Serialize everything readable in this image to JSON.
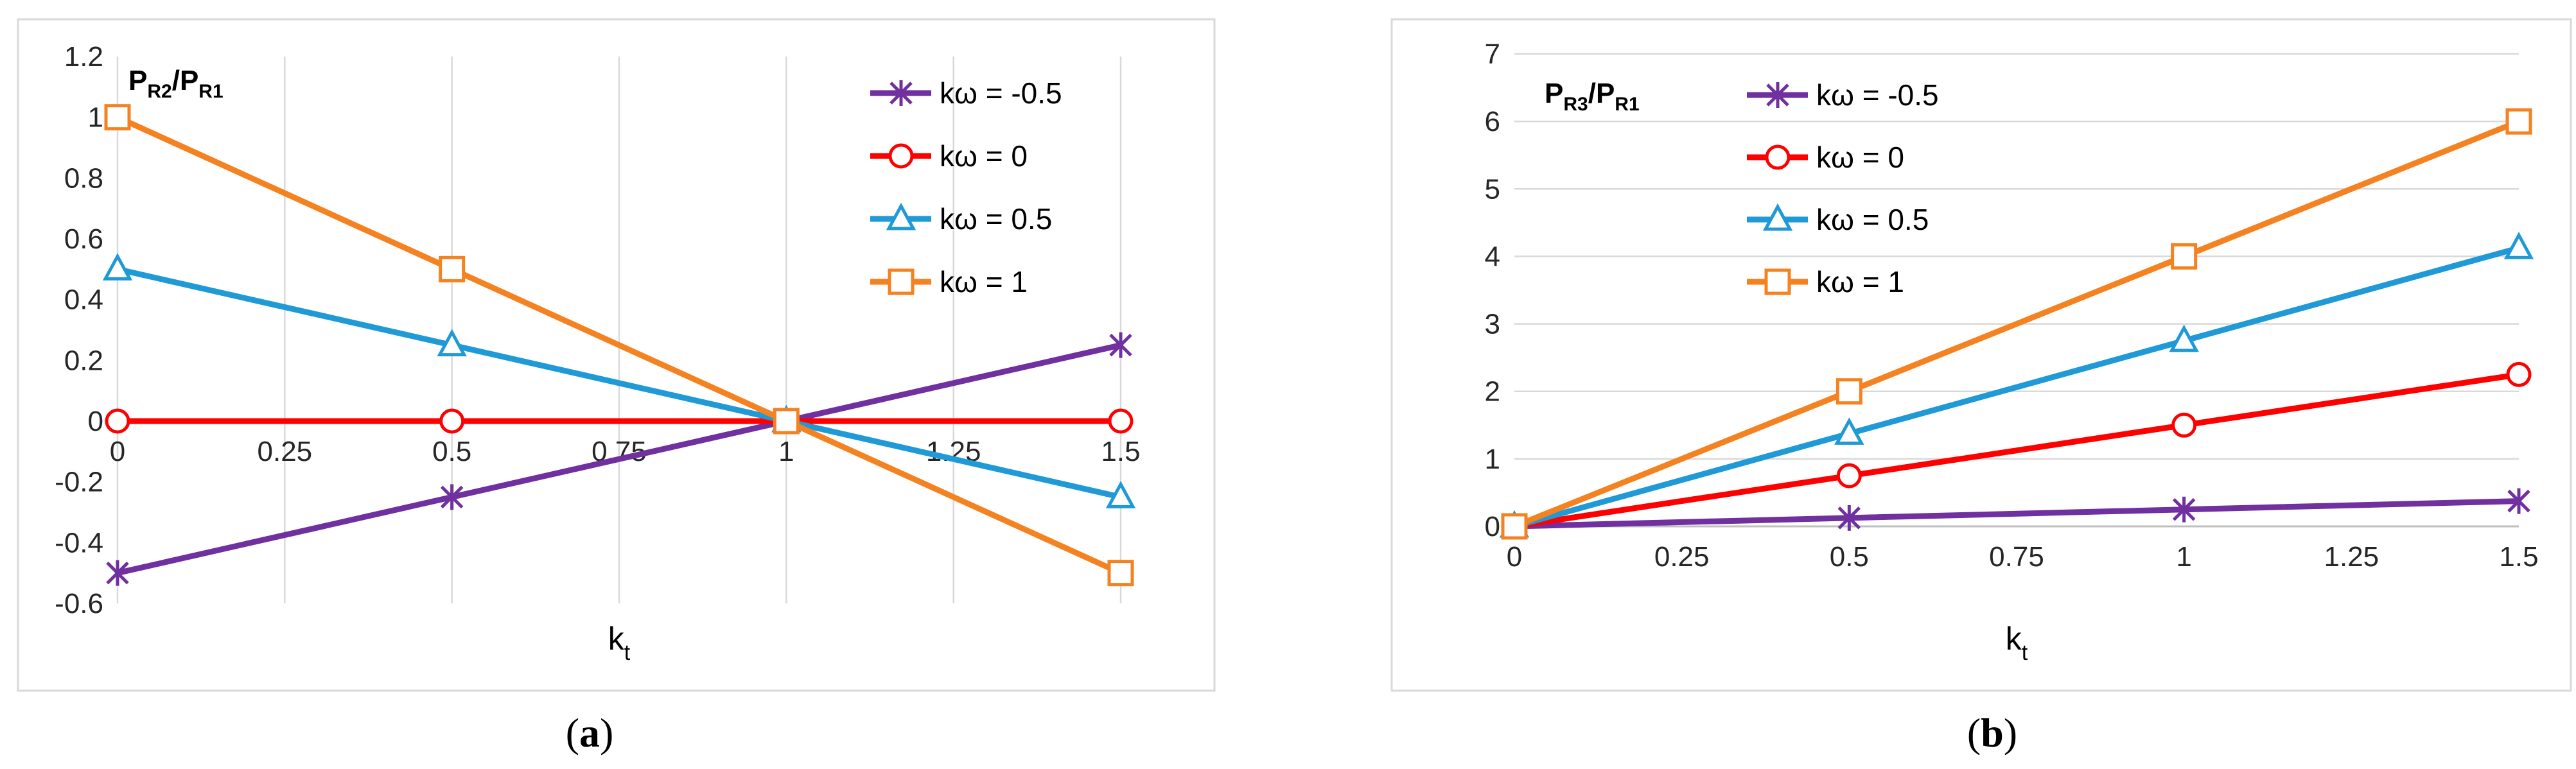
{
  "chart_data": [
    {
      "type": "line",
      "panel_label": "a",
      "ylabel_main": "P",
      "ylabel_parts": [
        [
          "P",
          ""
        ],
        [
          "R2",
          "sub"
        ],
        [
          "/P",
          ""
        ],
        [
          "R1",
          "sub"
        ]
      ],
      "ylabel_text": "PR2/PR1",
      "xlabel_main": "k",
      "xlabel_sub": "t",
      "x_ticks": [
        "0",
        "0.25",
        "0.5",
        "0.75",
        "1",
        "1.25",
        "1.5"
      ],
      "y_ticks": [
        "-0.6",
        "-0.4",
        "-0.2",
        "0",
        "0.2",
        "0.4",
        "0.6",
        "0.8",
        "1",
        "1.2"
      ],
      "xlim": [
        0,
        1.5
      ],
      "ylim": [
        -0.6,
        1.2
      ],
      "grid": "vertical",
      "x_axis_at_zero": true,
      "legend_position": "top-right",
      "x": [
        0,
        0.5,
        1,
        1.5
      ],
      "series": [
        {
          "name": "kω = -0.5",
          "color": "#7030A0",
          "marker": "star",
          "values": [
            -0.5,
            -0.25,
            0,
            0.25
          ]
        },
        {
          "name": "kω = 0",
          "color": "#FF0000",
          "marker": "circle",
          "values": [
            0,
            0,
            0,
            0
          ]
        },
        {
          "name": "kω = 0.5",
          "color": "#1F9AD6",
          "marker": "triangle",
          "values": [
            0.5,
            0.25,
            0,
            -0.25
          ]
        },
        {
          "name": "kω = 1",
          "color": "#F58220",
          "marker": "square",
          "values": [
            1,
            0.5,
            0,
            -0.5
          ]
        }
      ]
    },
    {
      "type": "line",
      "panel_label": "b",
      "ylabel_parts": [
        [
          "P",
          ""
        ],
        [
          "R3",
          "sub"
        ],
        [
          "/P",
          ""
        ],
        [
          "R1",
          "sub"
        ]
      ],
      "ylabel_text": "PR3/PR1",
      "xlabel_main": "k",
      "xlabel_sub": "t",
      "x_ticks": [
        "0",
        "0.25",
        "0.5",
        "0.75",
        "1",
        "1.25",
        "1.5"
      ],
      "y_ticks": [
        "0",
        "1",
        "2",
        "3",
        "4",
        "5",
        "6",
        "7"
      ],
      "xlim": [
        0,
        1.5
      ],
      "ylim": [
        0,
        7
      ],
      "grid": "horizontal",
      "x_axis_at_zero": false,
      "legend_position": "top-left",
      "x": [
        0,
        0.5,
        1,
        1.5
      ],
      "series": [
        {
          "name": "kω = -0.5",
          "color": "#7030A0",
          "marker": "star",
          "values": [
            0,
            0.125,
            0.25,
            0.375
          ]
        },
        {
          "name": "kω = 0",
          "color": "#FF0000",
          "marker": "circle",
          "values": [
            0,
            0.75,
            1.5,
            2.25
          ]
        },
        {
          "name": "kω = 0.5",
          "color": "#1F9AD6",
          "marker": "triangle",
          "values": [
            0,
            1.375,
            2.75,
            4.125
          ]
        },
        {
          "name": "kω = 1",
          "color": "#F58220",
          "marker": "square",
          "values": [
            0,
            2,
            4,
            6
          ]
        }
      ]
    }
  ],
  "captions": {
    "a": {
      "open": "(",
      "letter": "a",
      "close": ")"
    },
    "b": {
      "open": "(",
      "letter": "b",
      "close": ")"
    }
  }
}
